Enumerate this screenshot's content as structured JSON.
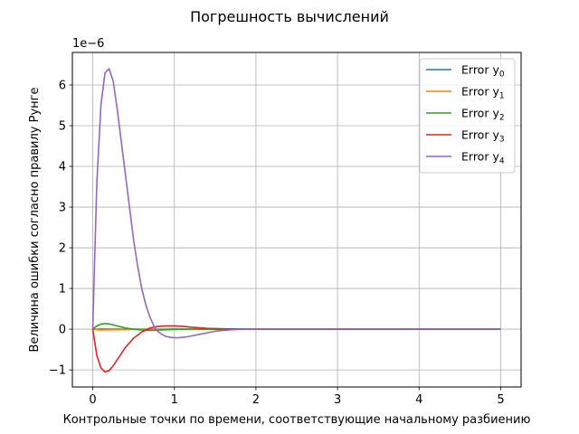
{
  "chart_data": {
    "type": "line",
    "title": "Погрешность вычислений",
    "xlabel": "Контрольные точки по времени, соответствующие начальному разбиению",
    "ylabel": "Величина ошибки согласно правилу Рунге",
    "y_offset_label": "1e−6",
    "y_scale": 1e-06,
    "xlim": [
      -0.25,
      5.25
    ],
    "ylim": [
      -1.42e-06,
      6.8e-06
    ],
    "x_ticks": [
      0,
      1,
      2,
      3,
      4,
      5
    ],
    "x_tick_labels": [
      "0",
      "1",
      "2",
      "3",
      "4",
      "5"
    ],
    "y_ticks": [
      -1e-06,
      0,
      1e-06,
      2e-06,
      3e-06,
      4e-06,
      5e-06,
      6e-06
    ],
    "y_tick_labels": [
      "−1",
      "0",
      "1",
      "2",
      "3",
      "4",
      "5",
      "6"
    ],
    "grid": true,
    "legend_position": "top-right",
    "series": [
      {
        "name": "Error y",
        "subscript": "0",
        "color": "#1f77b4",
        "x": [
          0,
          1,
          2,
          3,
          4,
          5
        ],
        "y": [
          0,
          0,
          0,
          0,
          0,
          0
        ]
      },
      {
        "name": "Error y",
        "subscript": "1",
        "color": "#ff7f0e",
        "x": [
          0,
          0.1,
          0.2,
          0.3,
          0.5,
          0.8,
          1.2,
          2,
          3,
          4,
          5
        ],
        "y": [
          0,
          -2e-08,
          -1.5e-08,
          -1e-08,
          -5e-09,
          0,
          0,
          0,
          0,
          0,
          0
        ]
      },
      {
        "name": "Error y",
        "subscript": "2",
        "color": "#2ca02c",
        "x": [
          0,
          0.05,
          0.1,
          0.15,
          0.2,
          0.3,
          0.4,
          0.5,
          0.6,
          0.7,
          0.8,
          0.9,
          1.0,
          1.2,
          1.5,
          2,
          3,
          4,
          5
        ],
        "y": [
          0,
          8e-08,
          1.25e-07,
          1.38e-07,
          1.3e-07,
          8e-08,
          3e-08,
          0,
          -2e-08,
          -3e-08,
          -2.5e-08,
          -1.5e-08,
          -5e-09,
          0,
          0,
          0,
          0,
          0,
          0
        ]
      },
      {
        "name": "Error y",
        "subscript": "3",
        "color": "#d62728",
        "x": [
          0,
          0.05,
          0.1,
          0.15,
          0.2,
          0.25,
          0.3,
          0.4,
          0.5,
          0.6,
          0.7,
          0.8,
          0.9,
          1.0,
          1.1,
          1.2,
          1.4,
          1.6,
          1.8,
          2.0,
          2.5,
          3,
          4,
          5
        ],
        "y": [
          0,
          -6.5e-07,
          -9.5e-07,
          -1.05e-06,
          -1.02e-06,
          -9e-07,
          -7.5e-07,
          -4.5e-07,
          -2.2e-07,
          -7e-08,
          3e-08,
          7e-08,
          8e-08,
          8e-08,
          7e-08,
          5e-08,
          2e-08,
          8e-09,
          3e-09,
          0,
          0,
          0,
          0,
          0
        ]
      },
      {
        "name": "Error y",
        "subscript": "4",
        "color": "#9467bd",
        "x": [
          0,
          0.02,
          0.05,
          0.1,
          0.15,
          0.2,
          0.25,
          0.3,
          0.35,
          0.4,
          0.45,
          0.5,
          0.55,
          0.6,
          0.65,
          0.7,
          0.75,
          0.8,
          0.85,
          0.9,
          0.95,
          1.0,
          1.05,
          1.1,
          1.15,
          1.2,
          1.3,
          1.4,
          1.5,
          1.6,
          1.7,
          1.8,
          1.9,
          2.0,
          2.5,
          3,
          4,
          5
        ],
        "y": [
          0,
          1.5e-06,
          3.6e-06,
          5.5e-06,
          6.3e-06,
          6.4e-06,
          6.1e-06,
          5.4e-06,
          4.6e-06,
          3.8e-06,
          3e-06,
          2.2e-06,
          1.55e-06,
          1e-06,
          6e-07,
          3e-07,
          8e-08,
          -6e-08,
          -1.3e-07,
          -1.8e-07,
          -2e-07,
          -2.1e-07,
          -2.1e-07,
          -2e-07,
          -1.9e-07,
          -1.7e-07,
          -1.3e-07,
          -9e-08,
          -5e-08,
          -3e-08,
          -1.5e-08,
          -5e-09,
          0,
          0,
          0,
          0,
          0,
          0
        ]
      }
    ]
  }
}
